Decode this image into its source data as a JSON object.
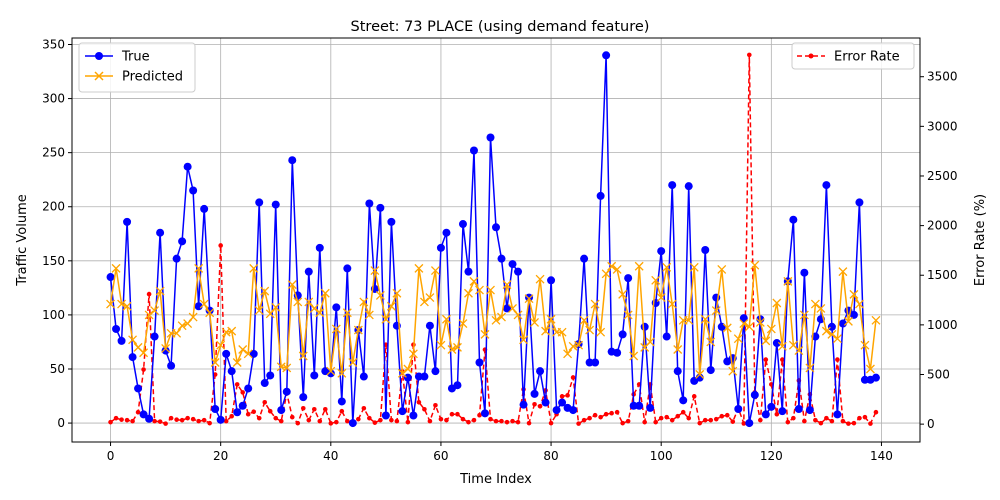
{
  "chart_data": {
    "type": "line",
    "title": "Street: 73 PLACE (using demand feature)",
    "xlabel": "Time Index",
    "ylabel_left": "Traffic Volume",
    "ylabel_right": "Error Rate (%)",
    "xlim": [
      -7,
      147
    ],
    "ylim_left": [
      -17.5,
      356
    ],
    "ylim_right": [
      -180,
      3890
    ],
    "x_ticks": [
      0,
      20,
      40,
      60,
      80,
      100,
      120,
      140
    ],
    "y_ticks_left": [
      0,
      50,
      100,
      150,
      200,
      250,
      300,
      350
    ],
    "y_ticks_right": [
      0,
      500,
      1000,
      1500,
      2000,
      2500,
      3000,
      3500
    ],
    "grid": true,
    "legend_left_placement": "top-left",
    "legend_right_placement": "top-right",
    "x": [
      0,
      1,
      2,
      3,
      4,
      5,
      6,
      7,
      8,
      9,
      10,
      11,
      12,
      13,
      14,
      15,
      16,
      17,
      18,
      19,
      20,
      21,
      22,
      23,
      24,
      25,
      26,
      27,
      28,
      29,
      30,
      31,
      32,
      33,
      34,
      35,
      36,
      37,
      38,
      39,
      40,
      41,
      42,
      43,
      44,
      45,
      46,
      47,
      48,
      49,
      50,
      51,
      52,
      53,
      54,
      55,
      56,
      57,
      58,
      59,
      60,
      61,
      62,
      63,
      64,
      65,
      66,
      67,
      68,
      69,
      70,
      71,
      72,
      73,
      74,
      75,
      76,
      77,
      78,
      79,
      80,
      81,
      82,
      83,
      84,
      85,
      86,
      87,
      88,
      89,
      90,
      91,
      92,
      93,
      94,
      95,
      96,
      97,
      98,
      99,
      100,
      101,
      102,
      103,
      104,
      105,
      106,
      107,
      108,
      109,
      110,
      111,
      112,
      113,
      114,
      115,
      116,
      117,
      118,
      119,
      120,
      121,
      122,
      123,
      124,
      125,
      126,
      127,
      128,
      129,
      130,
      131,
      132,
      133,
      134,
      135,
      136,
      137,
      138,
      139
    ],
    "series": [
      {
        "name": "True",
        "axis": "left",
        "color": "#0000ff",
        "marker": "circle",
        "values": [
          135,
          87,
          76,
          186,
          61,
          32,
          8,
          4,
          80,
          176,
          67,
          53,
          152,
          168,
          237,
          215,
          108,
          198,
          104,
          13,
          3,
          64,
          48,
          10,
          16,
          32,
          64,
          204,
          37,
          44,
          202,
          12,
          29,
          243,
          118,
          24,
          140,
          44,
          162,
          48,
          46,
          107,
          20,
          143,
          0,
          86,
          43,
          203,
          124,
          199,
          7,
          186,
          90,
          11,
          42,
          7,
          43,
          43,
          90,
          48,
          162,
          176,
          32,
          35,
          184,
          140,
          252,
          56,
          9,
          264,
          181,
          152,
          106,
          147,
          140,
          17,
          116,
          27,
          48,
          19,
          132,
          12,
          19,
          14,
          12,
          73,
          152,
          56,
          56,
          210,
          340,
          66,
          65,
          82,
          134,
          16,
          16,
          89,
          14,
          111,
          159,
          80,
          220,
          48,
          21,
          219,
          39,
          42,
          160,
          49,
          116,
          89,
          57,
          60,
          13,
          97,
          0,
          26,
          96,
          8,
          15,
          74,
          11,
          131,
          188,
          13,
          139,
          12,
          80,
          96,
          220,
          89,
          8,
          92,
          104,
          100,
          204,
          40,
          40,
          42
        ]
      },
      {
        "name": "Predicted",
        "axis": "left",
        "color": "#ffa500",
        "marker": "x",
        "values": [
          110,
          143,
          110,
          108,
          77,
          70,
          65,
          100,
          104,
          122,
          69,
          83,
          83,
          90,
          92,
          98,
          143,
          110,
          102,
          56,
          72,
          84,
          85,
          56,
          68,
          64,
          143,
          104,
          122,
          101,
          107,
          52,
          51,
          128,
          112,
          62,
          112,
          106,
          102,
          120,
          48,
          87,
          46,
          102,
          56,
          86,
          112,
          100,
          141,
          118,
          96,
          108,
          120,
          46,
          50,
          64,
          143,
          112,
          116,
          141,
          72,
          96,
          68,
          70,
          92,
          120,
          131,
          123,
          82,
          123,
          95,
          98,
          128,
          106,
          100,
          77,
          115,
          93,
          133,
          85,
          96,
          84,
          84,
          64,
          71,
          72,
          95,
          86,
          110,
          84,
          138,
          145,
          142,
          119,
          100,
          62,
          145,
          70,
          75,
          132,
          116,
          144,
          110,
          68,
          95,
          95,
          144,
          45,
          96,
          75,
          104,
          142,
          88,
          48,
          78,
          92,
          89,
          146,
          93,
          76,
          87,
          111,
          71,
          131,
          72,
          67,
          100,
          51,
          110,
          106,
          85,
          82,
          78,
          140,
          94,
          119,
          110,
          72,
          50,
          95
        ]
      },
      {
        "name": "Error Rate",
        "axis": "right",
        "color": "#ff0000",
        "style": "dashed",
        "marker": "dot",
        "values": [
          20,
          60,
          45,
          40,
          30,
          120,
          550,
          1310,
          30,
          25,
          5,
          60,
          45,
          40,
          60,
          50,
          30,
          40,
          10,
          500,
          1800,
          30,
          80,
          400,
          320,
          100,
          125,
          60,
          220,
          130,
          60,
          30,
          310,
          70,
          10,
          160,
          40,
          150,
          30,
          150,
          8,
          20,
          130,
          30,
          5,
          50,
          160,
          60,
          15,
          40,
          800,
          40,
          30,
          530,
          20,
          800,
          220,
          150,
          30,
          190,
          50,
          40,
          100,
          100,
          50,
          20,
          40,
          90,
          750,
          50,
          30,
          30,
          20,
          30,
          20,
          350,
          10,
          200,
          180,
          340,
          10,
          100,
          280,
          290,
          470,
          5,
          40,
          60,
          90,
          70,
          100,
          110,
          120,
          10,
          30,
          300,
          400,
          20,
          400,
          20,
          60,
          70,
          40,
          80,
          120,
          60,
          280,
          10,
          40,
          40,
          50,
          80,
          90,
          25,
          160,
          7,
          3720,
          320,
          40,
          650,
          400,
          100,
          650,
          20,
          60,
          440,
          30,
          300,
          40,
          10,
          60,
          30,
          650,
          30,
          5,
          10,
          60,
          70,
          5,
          120
        ]
      }
    ]
  }
}
